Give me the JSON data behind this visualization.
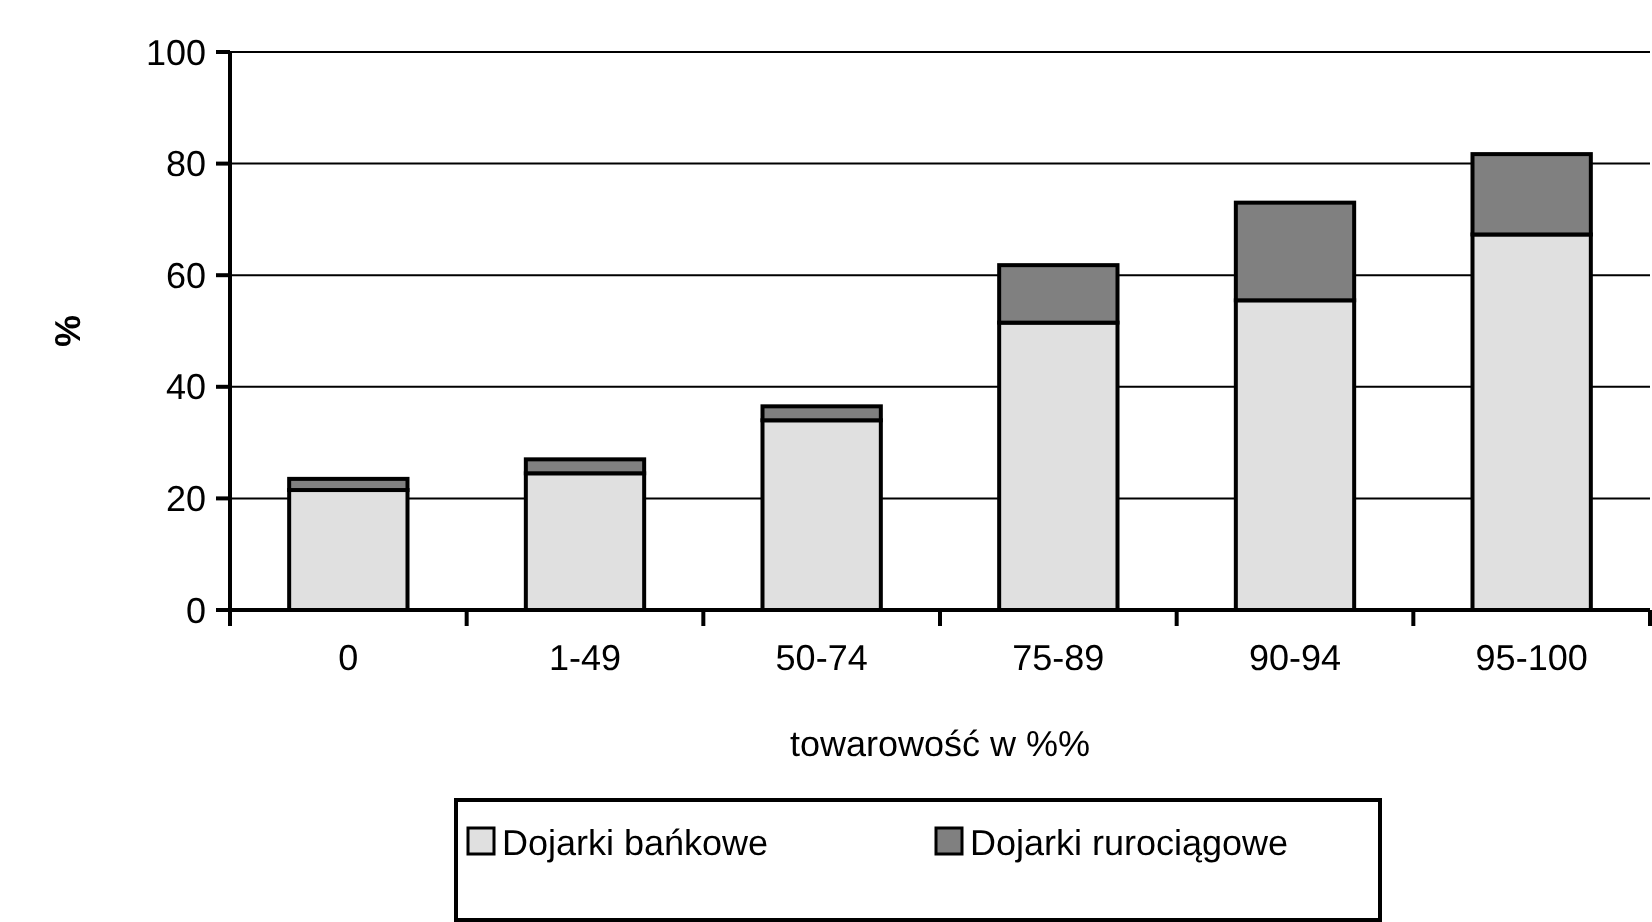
{
  "chart_data": {
    "type": "bar",
    "xlabel": "towarowość w %%",
    "ylabel": "%",
    "categories": [
      "0",
      "1-49",
      "50-74",
      "75-89",
      "90-94",
      "95-100"
    ],
    "stacked": true,
    "series": [
      {
        "name": "Dojarki bańkowe",
        "color": "#e0e0e0",
        "values": [
          21.5,
          24.5,
          34,
          51.5,
          55.5,
          67.3
        ]
      },
      {
        "name": "Dojarki rurociągowe",
        "color": "#808080",
        "values": [
          2,
          2.5,
          2.5,
          10.3,
          17.5,
          14.4
        ]
      }
    ],
    "ylim": [
      0,
      100
    ],
    "yticks": [
      0,
      20,
      40,
      60,
      80,
      100
    ],
    "grid": "y",
    "legend": "bottom"
  }
}
